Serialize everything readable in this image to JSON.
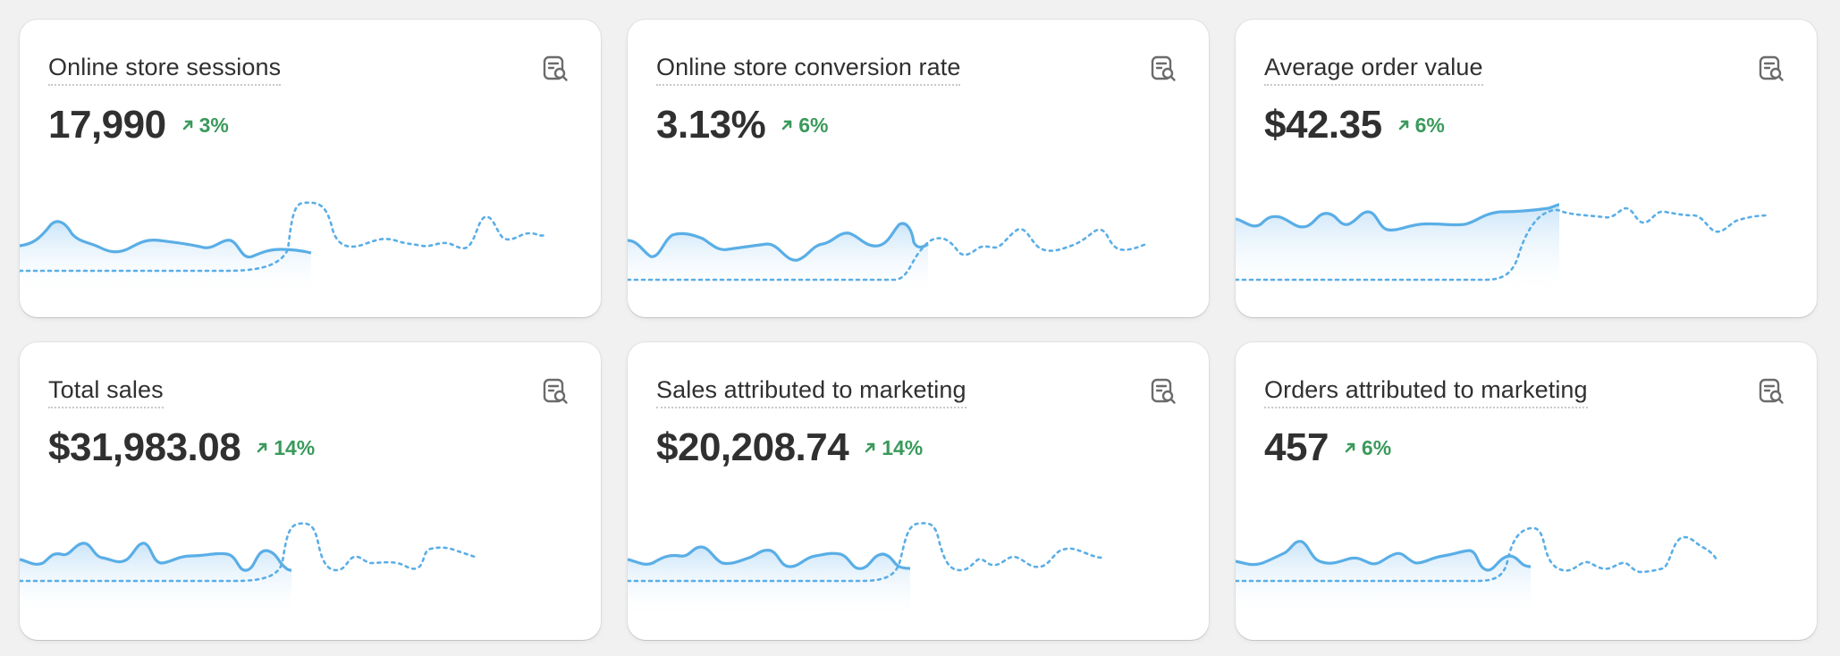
{
  "metrics": [
    {
      "title": "Online store sessions",
      "value": "17,990",
      "change": "3%"
    },
    {
      "title": "Online store conversion rate",
      "value": "3.13%",
      "change": "6%"
    },
    {
      "title": "Average order value",
      "value": "$42.35",
      "change": "6%"
    },
    {
      "title": "Total sales",
      "value": "$31,983.08",
      "change": "14%"
    },
    {
      "title": "Sales attributed to marketing",
      "value": "$20,208.74",
      "change": "14%"
    },
    {
      "title": "Orders attributed to marketing",
      "value": "457",
      "change": "6%"
    }
  ],
  "icons": {
    "report": "view-report-icon",
    "trend": "arrow-up-right-icon"
  },
  "colors": {
    "page_bg": "#f1f1f1",
    "card_bg": "#ffffff",
    "text": "#303030",
    "positive": "#3a9a5b",
    "sparkline": "#5aaee6",
    "sparkline_fill": "#d7ebfa",
    "comparison_line": "#5aaee6"
  }
}
